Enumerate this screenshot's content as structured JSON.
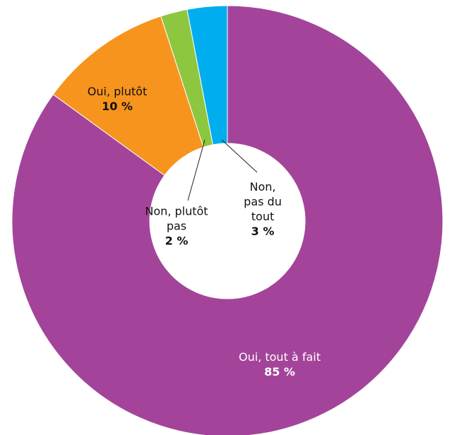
{
  "chart_data": {
    "type": "donut",
    "categories": [
      "Oui, tout à fait",
      "Oui, plutôt",
      "Non, plutôt pas",
      "Non, pas du tout"
    ],
    "values": [
      85,
      10,
      2,
      3
    ],
    "value_labels": [
      "85 %",
      "10 %",
      "2 %",
      "3 %"
    ],
    "colors": [
      "#a3449a",
      "#f7941d",
      "#8dc63f",
      "#00aeef"
    ]
  }
}
